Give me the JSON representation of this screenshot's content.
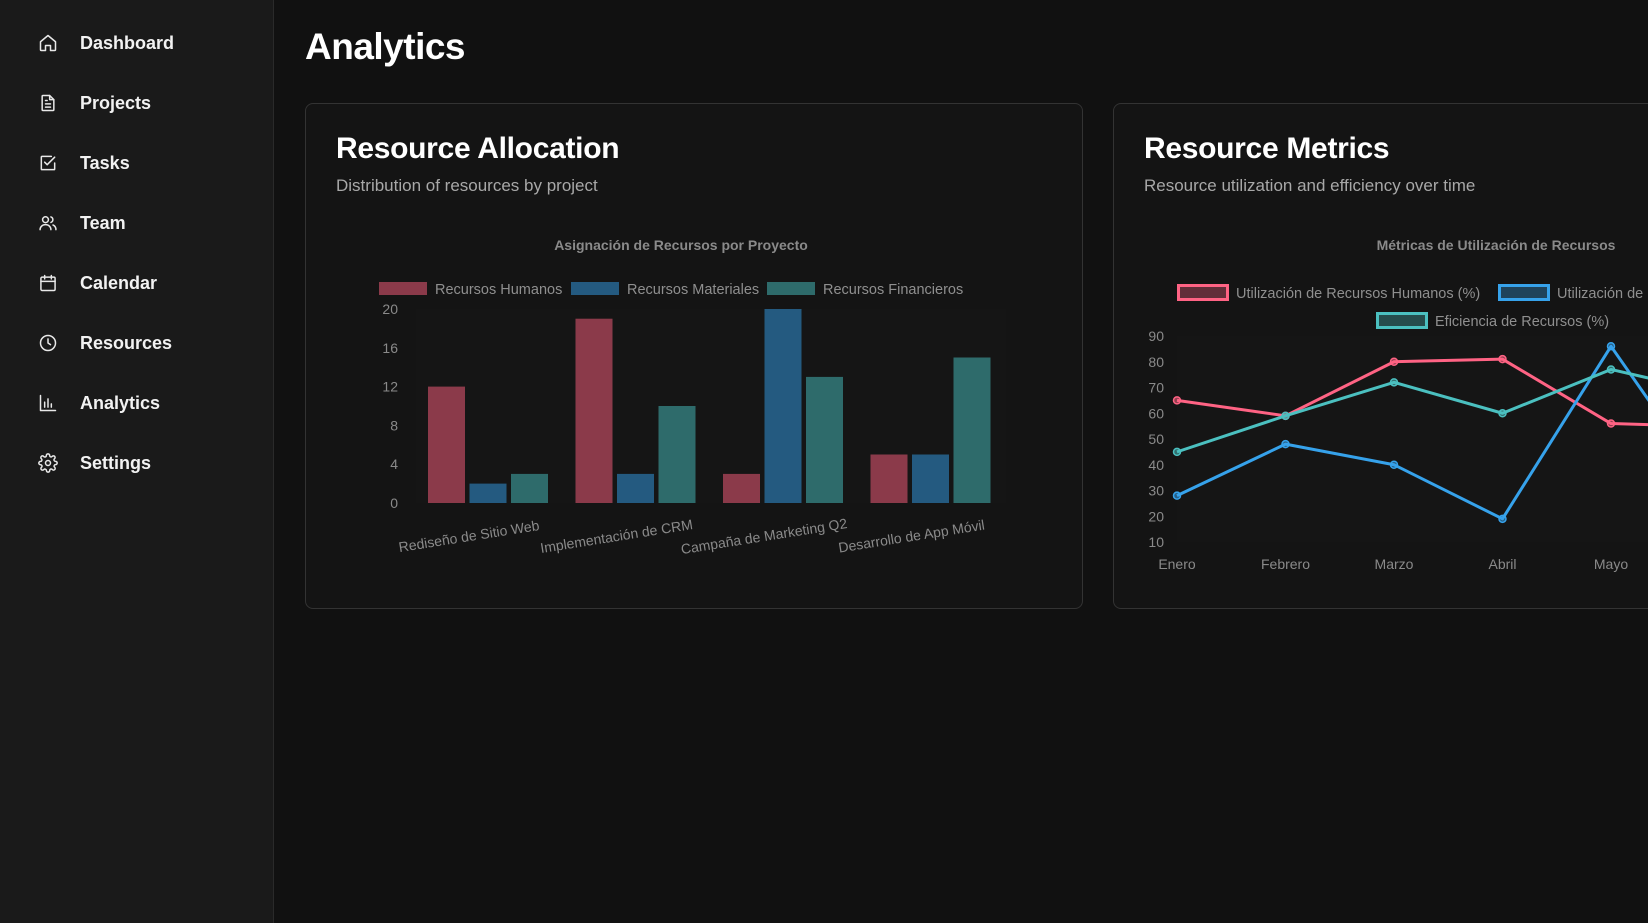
{
  "sidebar": {
    "items": [
      {
        "label": "Dashboard",
        "icon": "home-icon"
      },
      {
        "label": "Projects",
        "icon": "document-icon"
      },
      {
        "label": "Tasks",
        "icon": "checkbox-icon"
      },
      {
        "label": "Team",
        "icon": "users-icon"
      },
      {
        "label": "Calendar",
        "icon": "calendar-icon"
      },
      {
        "label": "Resources",
        "icon": "clock-icon"
      },
      {
        "label": "Analytics",
        "icon": "bar-chart-icon"
      },
      {
        "label": "Settings",
        "icon": "gear-icon"
      }
    ]
  },
  "page": {
    "title": "Analytics"
  },
  "cards": {
    "allocation": {
      "title": "Resource Allocation",
      "subtitle": "Distribution of resources by project"
    },
    "metrics": {
      "title": "Resource Metrics",
      "subtitle": "Resource utilization and efficiency over time"
    }
  },
  "colors": {
    "background": "#111111",
    "sidebar": "#1a1a1a",
    "humanos": "#8b3a4a",
    "materiales": "#245a80",
    "financieros": "#2e6b6b",
    "line_humanos": "#ff6384",
    "line_materiales": "#36a2eb",
    "line_eficiencia": "#4bc0c0"
  },
  "chart_data": [
    {
      "type": "bar",
      "title": "Asignación de Recursos por Proyecto",
      "categories": [
        "Rediseño de Sitio Web",
        "Implementación de CRM",
        "Campaña de Marketing Q2",
        "Desarrollo de App Móvil"
      ],
      "series": [
        {
          "name": "Recursos Humanos",
          "values": [
            12,
            19,
            3,
            5
          ]
        },
        {
          "name": "Recursos Materiales",
          "values": [
            2,
            3,
            20,
            5
          ]
        },
        {
          "name": "Recursos Financieros",
          "values": [
            3,
            10,
            13,
            15
          ]
        }
      ],
      "ylim": [
        0,
        20
      ],
      "yticks": [
        0,
        4,
        8,
        12,
        16,
        20
      ],
      "legend": "top",
      "grid": false
    },
    {
      "type": "line",
      "title": "Métricas de Utilización de Recursos",
      "categories": [
        "Enero",
        "Febrero",
        "Marzo",
        "Abril",
        "Mayo"
      ],
      "series": [
        {
          "name": "Utilización de Recursos Humanos (%)",
          "values": [
            65,
            59,
            80,
            81,
            56
          ]
        },
        {
          "name": "Utilización de",
          "values": [
            28,
            48,
            40,
            19,
            86
          ]
        },
        {
          "name": "Eficiencia de Recursos (%)",
          "values": [
            45,
            59,
            72,
            60,
            77
          ]
        }
      ],
      "ylim": [
        10,
        90
      ],
      "yticks": [
        10,
        20,
        30,
        40,
        50,
        60,
        70,
        80,
        90
      ],
      "legend": "top",
      "grid": false
    }
  ]
}
